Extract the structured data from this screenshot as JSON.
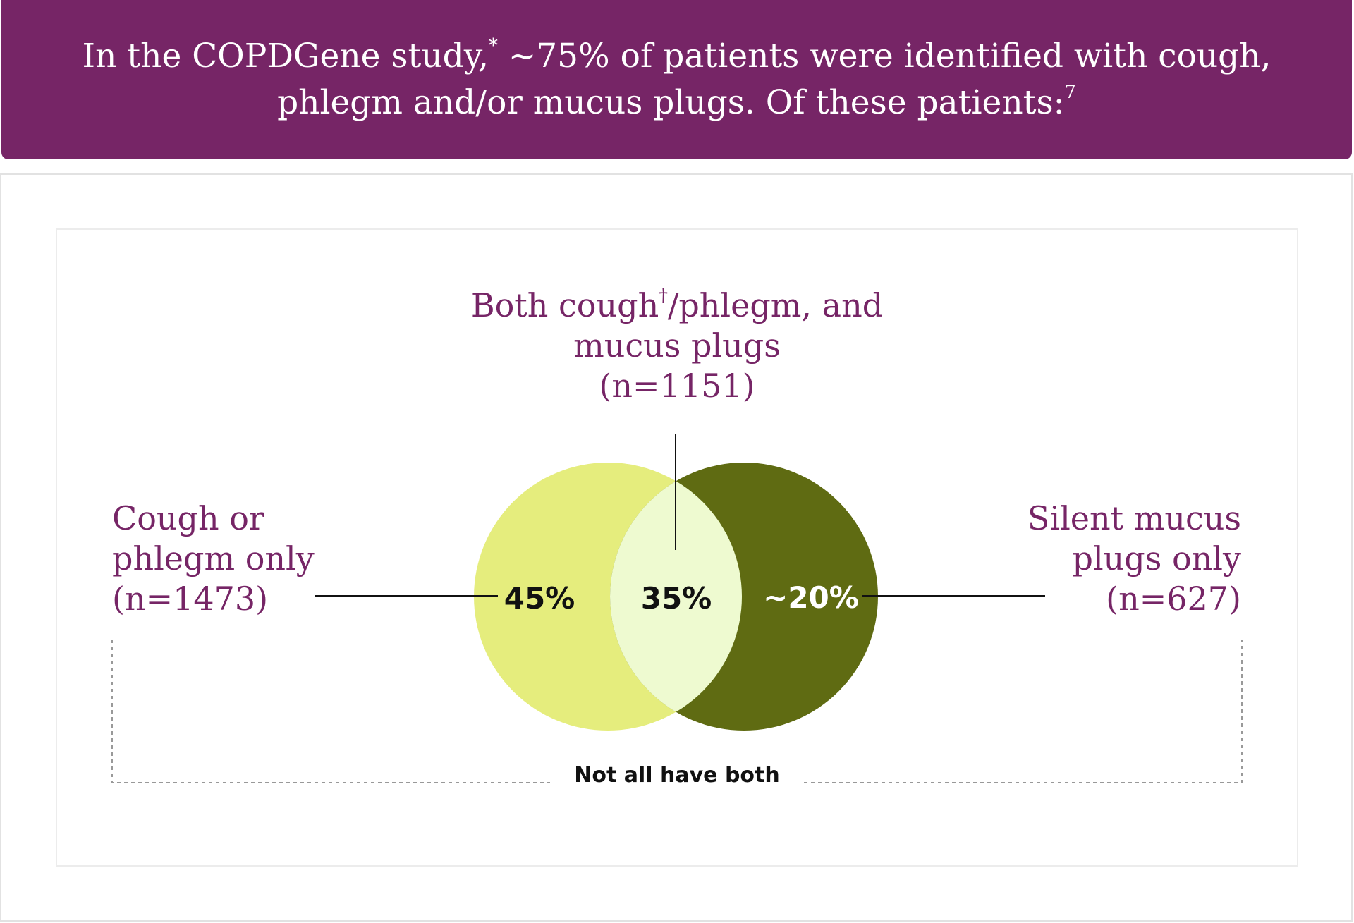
{
  "banner": {
    "line1_pre": "In the COPDGene study,",
    "line1_sup": "*",
    "line1_post": " ~75% of patients were identified with cough,",
    "line2_pre": "phlegm and/or mucus plugs. Of these patients:",
    "line2_sup": "7"
  },
  "labels": {
    "both": {
      "line1_pre": "Both cough",
      "line1_sup": "†",
      "line1_post": "/phlegm, and",
      "line2": "mucus plugs",
      "n": "(n=1151)"
    },
    "cough_only": {
      "line1": "Cough or",
      "line2": "phlegm only",
      "n": "(n=1473)"
    },
    "plugs_only": {
      "line1": "Silent mucus",
      "line2": "plugs only",
      "n": "(n=627)"
    }
  },
  "chart_data": {
    "type": "venn",
    "sets": [
      {
        "name": "Cough or phlegm only",
        "value_label": "45%",
        "value": 45,
        "n": 1473,
        "color": "#e5ed7d"
      },
      {
        "name": "Both cough/phlegm, and mucus plugs",
        "value_label": "35%",
        "value": 35,
        "n": 1151,
        "color": "#eefad0"
      },
      {
        "name": "Silent mucus plugs only",
        "value_label": "~20%",
        "value": 20,
        "n": 627,
        "color": "#5f6b12"
      }
    ],
    "note": "Not all have both"
  },
  "colors": {
    "brand_purple": "#762566",
    "left_circle": "#e5ed7d",
    "overlap": "#eefad0",
    "right_circle": "#5f6b12"
  }
}
